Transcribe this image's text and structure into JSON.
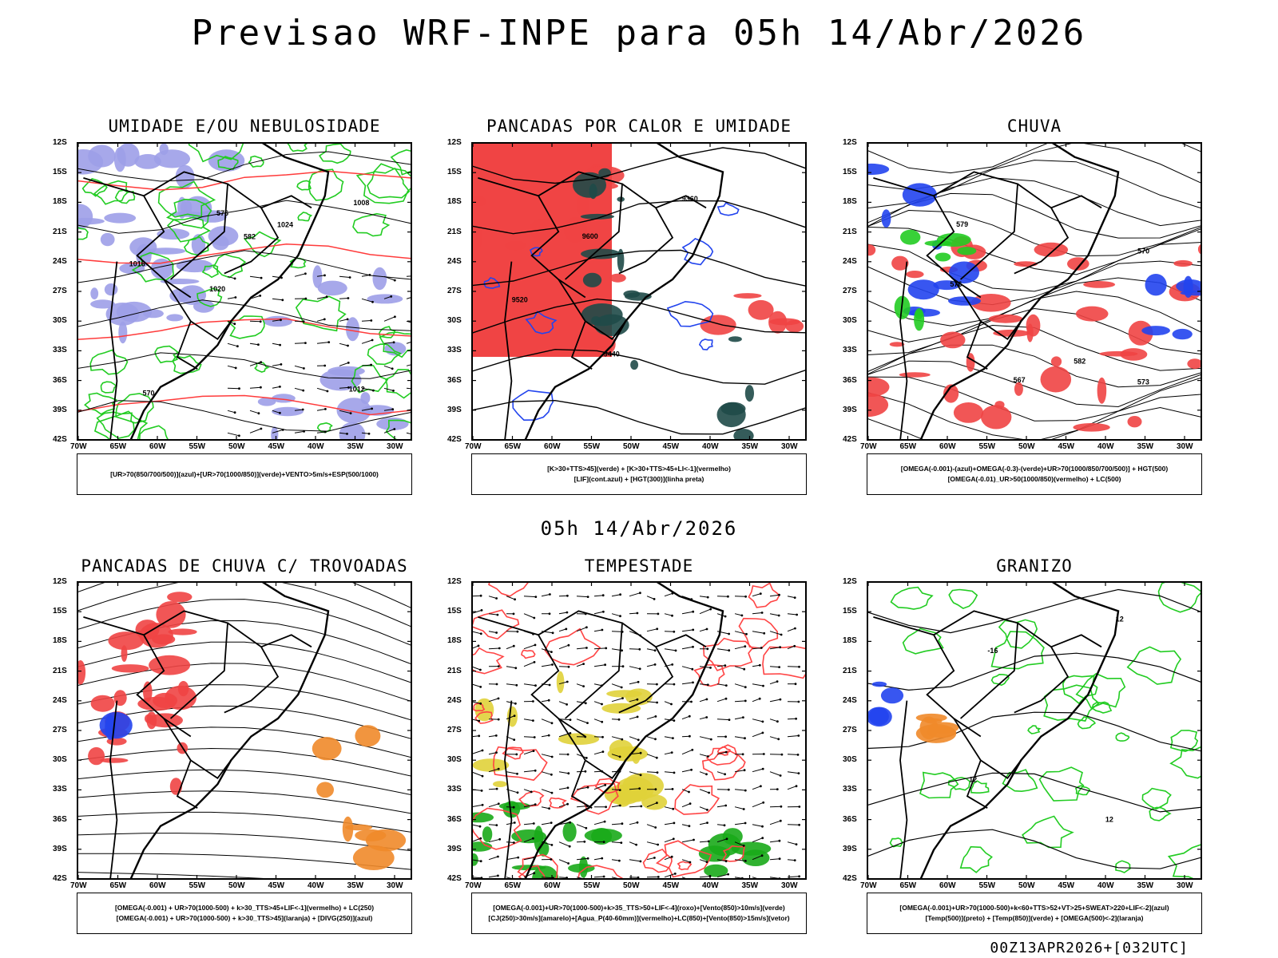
{
  "header": {
    "title": "Previsao WRF-INPE  para 05h 14/Abr/2026"
  },
  "middle": {
    "title": "05h 14/Abr/2026"
  },
  "footer": {
    "run": "00Z13APR2026+[032UTC]"
  },
  "axes": {
    "lat_labels": [
      "12S",
      "15S",
      "18S",
      "21S",
      "24S",
      "27S",
      "30S",
      "33S",
      "36S",
      "39S",
      "42S"
    ],
    "lon_labels": [
      "70W",
      "65W",
      "60W",
      "55W",
      "50W",
      "45W",
      "40W",
      "35W",
      "30W"
    ]
  },
  "panels": [
    {
      "id": "umidade",
      "title": "UMIDADE E/OU NEBULOSIDADE",
      "legend": [
        "[UR>70(850/700/500)](azul)+[UR>70(1000/850)](verde)+VENTO>5m/s+ESP(500/1000)"
      ],
      "contour_labels": [
        "1012",
        "1016",
        "1008",
        "1020",
        "1024",
        "570",
        "576",
        "582"
      ],
      "colors": {
        "shade": "#9d9fe8",
        "green": "#22cc22",
        "red": "#ff3b3b"
      }
    },
    {
      "id": "pancadas-calor",
      "title": "PANCADAS POR CALOR E UMIDADE",
      "legend": [
        "[K>30+TTS>45](verde) + [K>30+TTS>45+LI<-1](vermelho)",
        "[LIF](cont.azul) + [HGT(300)](linha preta)"
      ],
      "contour_labels": [
        "9600",
        "9520",
        "9440",
        "9360"
      ],
      "colors": {
        "red": "#f04444",
        "dark": "#1f4a48",
        "blue": "#2244ee"
      }
    },
    {
      "id": "chuva",
      "title": "CHUVA",
      "legend": [
        "[OMEGA(-0.001)-(azul)+OMEGA(-0.3)-(verde)+UR>70(1000/850/700/500)] + HGT(500)",
        "[OMEGA(-0.01)_UR>50(1000/850)(vermelho) + LC(500)"
      ],
      "contour_labels": [
        "582",
        "576",
        "570",
        "567",
        "573",
        "579"
      ],
      "colors": {
        "red": "#f04444",
        "blue": "#2244ee",
        "green": "#22cc22"
      }
    },
    {
      "id": "trovoadas",
      "title": "PANCADAS DE CHUVA C/ TROVOADAS",
      "legend": [
        "[OMEGA(-0.001) + UR>70(1000-500) + k>30_TTS>45+LIF<-1](vermelho) + LC(250)",
        "[OMEGA(-0.001) + UR>70(1000-500) + k>30_TTS>45](laranja) + [DIVG(250)](azul)"
      ],
      "colors": {
        "red": "#f04444",
        "orange": "#f08a2a",
        "blue": "#2244ee"
      }
    },
    {
      "id": "tempestade",
      "title": "TEMPESTADE",
      "legend": [
        "[OMEGA(-0.001)+UR>70(1000-500)+k>35_TTS>50+LIF<-4](roxo)+[Vento(850)>10m/s](verde)",
        "[CJ(250)>30m/s](amarelo)+[Agua_P(40-60mm)](vermelho)+LC(850)+[Vento(850)>15m/s](vetor)"
      ],
      "colors": {
        "yellow": "#e0d23a",
        "green": "#1aaa1a",
        "red": "#ff4444"
      }
    },
    {
      "id": "granizo",
      "title": "GRANIZO",
      "legend": [
        "[OMEGA(-0.001)+UR>70(1000-500)+k<60+TTS>52+VT>25+SWEAT>220+LIF<-2](azul)",
        "[Temp(500)](preto) + [Temp(850)](verde) + [OMEGA(500)<-2](laranja)"
      ],
      "contour_labels": [
        "12",
        "12",
        "-16",
        "12"
      ],
      "colors": {
        "green": "#22cc22",
        "orange": "#f08a2a",
        "blue": "#2244ee"
      }
    }
  ]
}
